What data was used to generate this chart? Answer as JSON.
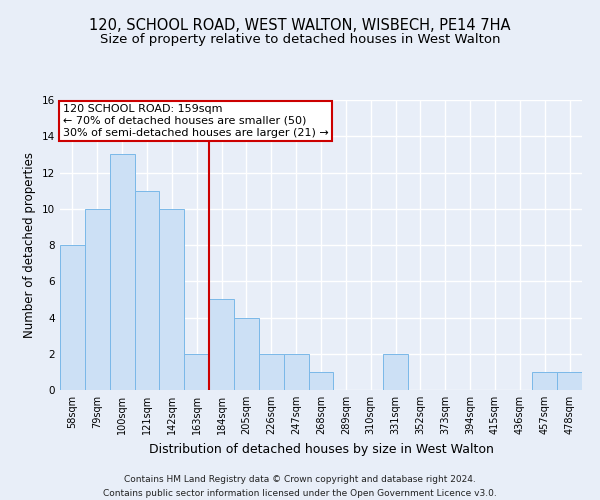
{
  "title": "120, SCHOOL ROAD, WEST WALTON, WISBECH, PE14 7HA",
  "subtitle": "Size of property relative to detached houses in West Walton",
  "xlabel": "Distribution of detached houses by size in West Walton",
  "ylabel": "Number of detached properties",
  "footer_line1": "Contains HM Land Registry data © Crown copyright and database right 2024.",
  "footer_line2": "Contains public sector information licensed under the Open Government Licence v3.0.",
  "categories": [
    "58sqm",
    "79sqm",
    "100sqm",
    "121sqm",
    "142sqm",
    "163sqm",
    "184sqm",
    "205sqm",
    "226sqm",
    "247sqm",
    "268sqm",
    "289sqm",
    "310sqm",
    "331sqm",
    "352sqm",
    "373sqm",
    "394sqm",
    "415sqm",
    "436sqm",
    "457sqm",
    "478sqm"
  ],
  "values": [
    8,
    10,
    13,
    11,
    10,
    2,
    5,
    4,
    2,
    2,
    1,
    0,
    0,
    2,
    0,
    0,
    0,
    0,
    0,
    1,
    1
  ],
  "bar_color": "#cce0f5",
  "bar_edge_color": "#7ab8e8",
  "property_line_index": 5,
  "annotation_line1": "120 SCHOOL ROAD: 159sqm",
  "annotation_line2": "← 70% of detached houses are smaller (50)",
  "annotation_line3": "30% of semi-detached houses are larger (21) →",
  "annotation_box_color": "#ffffff",
  "annotation_box_edge": "#cc0000",
  "vline_color": "#cc0000",
  "ylim": [
    0,
    16
  ],
  "yticks": [
    0,
    2,
    4,
    6,
    8,
    10,
    12,
    14,
    16
  ],
  "background_color": "#e8eef8",
  "grid_color": "#ffffff",
  "title_fontsize": 10.5,
  "subtitle_fontsize": 9.5,
  "xlabel_fontsize": 9,
  "ylabel_fontsize": 8.5,
  "tick_fontsize": 7,
  "footer_fontsize": 6.5,
  "annotation_fontsize": 8
}
